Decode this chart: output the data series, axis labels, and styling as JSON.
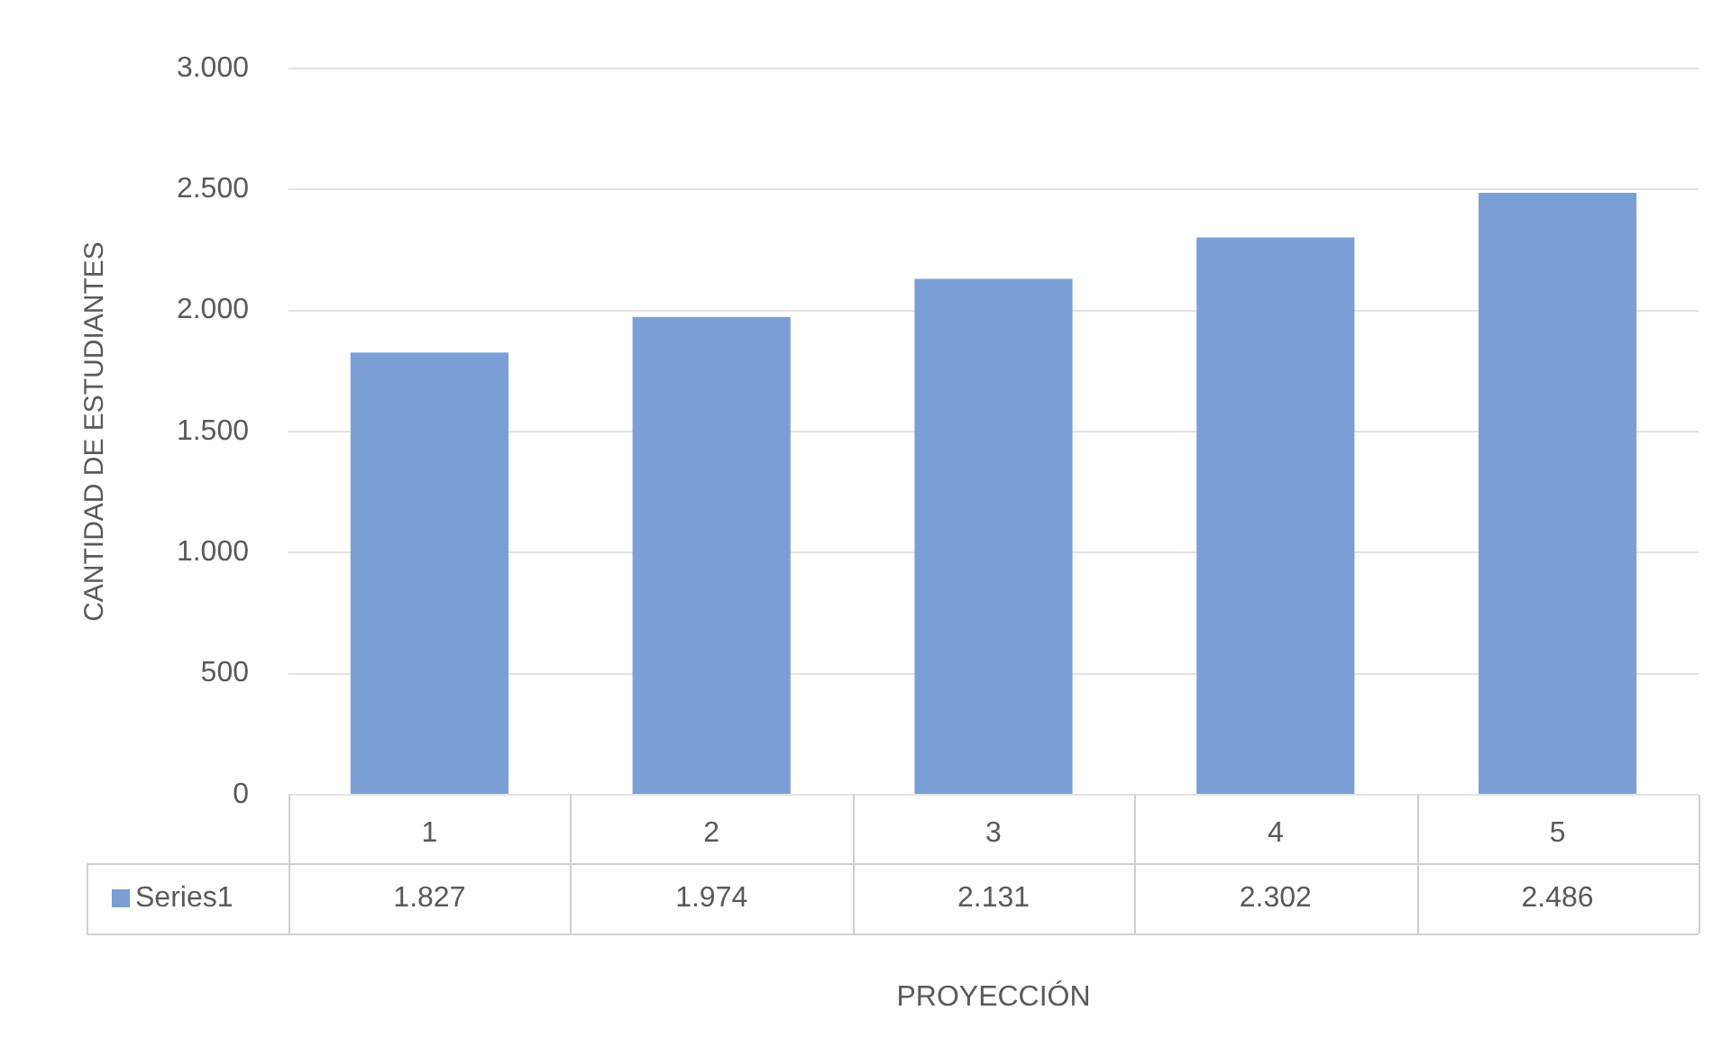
{
  "chart_data": {
    "type": "bar",
    "xlabel": "PROYECCIÓN",
    "ylabel": "CANTIDAD DE ESTUDIANTES",
    "categories": [
      "1",
      "2",
      "3",
      "4",
      "5"
    ],
    "series": [
      {
        "name": "Series1",
        "color": "#7a9fd6",
        "values": [
          1827,
          1974,
          2131,
          2302,
          2486
        ],
        "value_labels": [
          "1.827",
          "1.974",
          "2.131",
          "2.302",
          "2.486"
        ]
      }
    ],
    "ylim": [
      0,
      3000
    ],
    "yticks": [
      {
        "value": 0,
        "label": "0"
      },
      {
        "value": 500,
        "label": "500"
      },
      {
        "value": 1000,
        "label": "1.000"
      },
      {
        "value": 1500,
        "label": "1.500"
      },
      {
        "value": 2000,
        "label": "2.000"
      },
      {
        "value": 2500,
        "label": "2.500"
      },
      {
        "value": 3000,
        "label": "3.000"
      }
    ],
    "grid": "y"
  }
}
